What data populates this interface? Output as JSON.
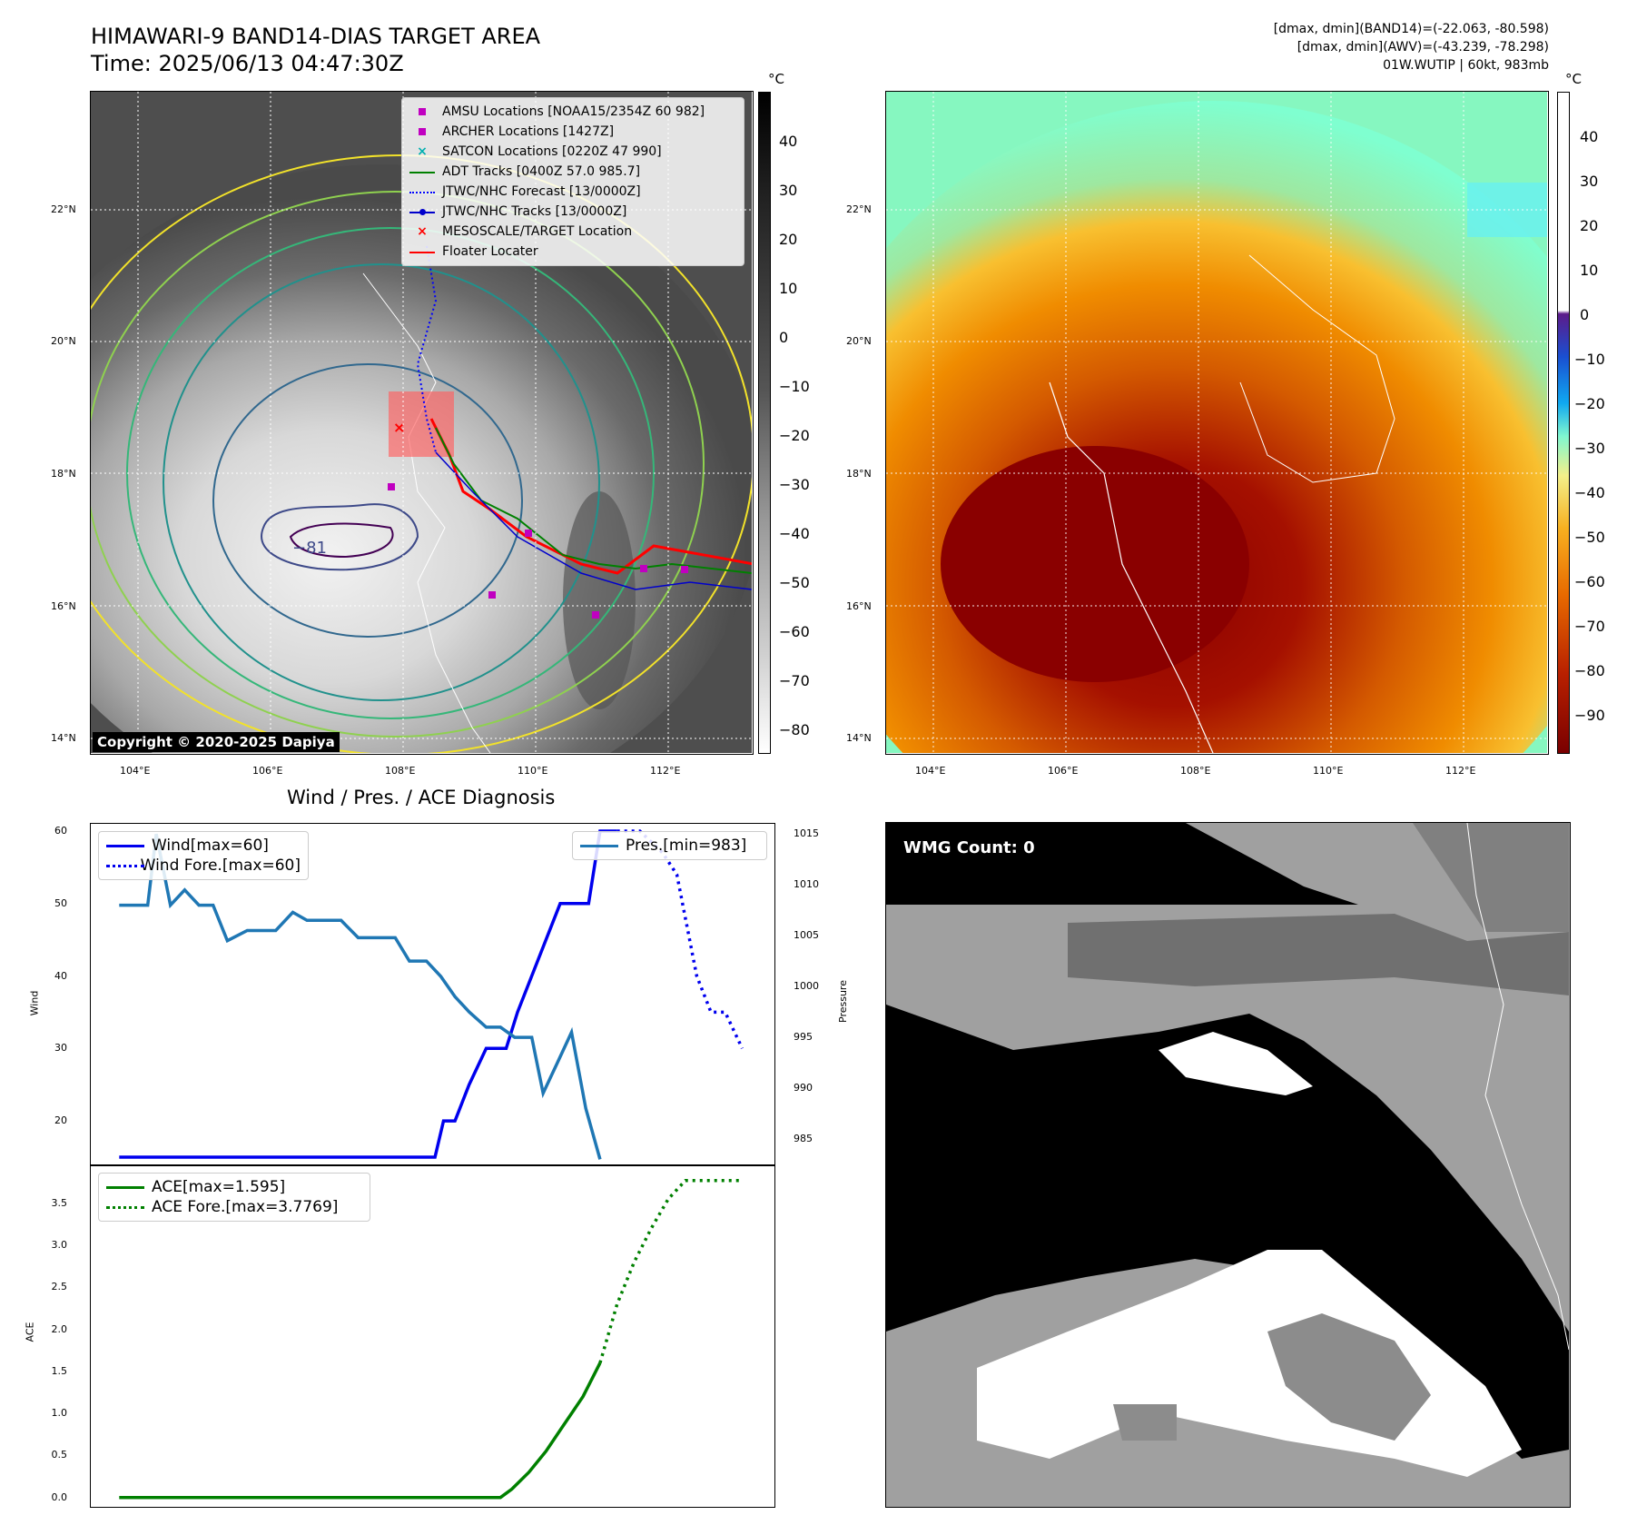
{
  "header": {
    "title_line1": "HIMAWARI-9 BAND14-DIAS TARGET AREA",
    "title_line2": "Time: 2025/06/13 04:47:30Z",
    "info_line1": "[dmax, dmin](BAND14)=(-22.063, -80.598)",
    "info_line2": "[dmax, dmin](AWV)=(-43.239, -78.298)",
    "info_line3": "01W.WUTIP | 60kt, 983mb"
  },
  "map_axes": {
    "lat_labels": [
      "22°N",
      "20°N",
      "18°N",
      "16°N",
      "14°N"
    ],
    "lon_labels": [
      "104°E",
      "106°E",
      "108°E",
      "110°E",
      "112°E"
    ]
  },
  "colorbar_left": {
    "unit": "°C",
    "ticks": [
      "40",
      "30",
      "20",
      "10",
      "0",
      "−10",
      "−20",
      "−30",
      "−40",
      "−50",
      "−60",
      "−70",
      "−80"
    ]
  },
  "colorbar_right": {
    "unit": "°C",
    "ticks": [
      "40",
      "30",
      "20",
      "10",
      "0",
      "−10",
      "−20",
      "−30",
      "−40",
      "−50",
      "−60",
      "−70",
      "−80",
      "−90"
    ]
  },
  "map_legend": [
    {
      "label": "AMSU Locations [NOAA15/2354Z 60 982]",
      "symbol": "square",
      "color": "#c000c0"
    },
    {
      "label": "ARCHER Locations [1427Z]",
      "symbol": "square",
      "color": "#c000c0"
    },
    {
      "label": "SATCON Locations [0220Z 47 990]",
      "symbol": "x",
      "color": "#00b0b0"
    },
    {
      "label": "ADT Tracks [0400Z 57.0 985.7]",
      "symbol": "line",
      "color": "#008000"
    },
    {
      "label": "JTWC/NHC Forecast [13/0000Z]",
      "symbol": "dotted",
      "color": "#0000ff"
    },
    {
      "label": "JTWC/NHC Tracks [13/0000Z]",
      "symbol": "line-dot",
      "color": "#0000cc"
    },
    {
      "label": "MESOSCALE/TARGET Location",
      "symbol": "x",
      "color": "#ff0000"
    },
    {
      "label": "Floater Locater",
      "symbol": "line",
      "color": "#ff0000"
    }
  ],
  "contour_label": "−81",
  "copyright": "Copyright © 2020-2025 Dapiya",
  "wmg": {
    "label": "WMG Count: 0"
  },
  "chart_data": [
    {
      "type": "line",
      "title": "Wind / Pres. / ACE Diagnosis",
      "ylabel": "Wind",
      "ylabel2": "Pressure",
      "ylim": [
        14,
        61
      ],
      "ylim2": [
        982.5,
        1016
      ],
      "yticks": [
        20,
        30,
        40,
        50,
        60
      ],
      "yticks2": [
        985,
        990,
        995,
        1000,
        1005,
        1010,
        1015
      ],
      "xlim": [
        0,
        24
      ],
      "series": [
        {
          "name": "Wind[max=60]",
          "axis": "left",
          "style": "solid",
          "color": "#0000ee",
          "x": [
            1,
            12.1,
            12.4,
            12.8,
            13.3,
            13.9,
            14.6,
            15,
            16.5,
            17.5,
            17.9,
            18.5
          ],
          "values": [
            15,
            15,
            20,
            20,
            25,
            30,
            30,
            35,
            50,
            50,
            60,
            60
          ]
        },
        {
          "name": "Wind Fore.[max=60]",
          "axis": "left",
          "style": "dotted",
          "color": "#0000ee",
          "x": [
            18.5,
            19.3,
            20.1,
            20.6,
            21.3,
            21.8,
            22.3,
            22.9
          ],
          "values": [
            60,
            60,
            57,
            54,
            40,
            35,
            35,
            30
          ]
        },
        {
          "name": "Pres.[min=983]",
          "axis": "right",
          "style": "solid",
          "color": "#1f77b4",
          "x": [
            1,
            2,
            2.3,
            2.8,
            3.3,
            3.8,
            4.3,
            4.8,
            5.5,
            6.5,
            7.1,
            7.6,
            8.2,
            8.8,
            9.4,
            10.1,
            10.7,
            11.2,
            11.8,
            12.3,
            12.8,
            13.3,
            13.9,
            14.4,
            14.9,
            15.5,
            15.9,
            16.4,
            16.9,
            17.4,
            17.9
          ],
          "values": [
            1008,
            1008,
            1015,
            1008,
            1009.5,
            1008,
            1008,
            1004.5,
            1005.5,
            1005.5,
            1007.3,
            1006.5,
            1006.5,
            1006.5,
            1004.8,
            1004.8,
            1004.8,
            1002.5,
            1002.5,
            1001,
            999,
            997.5,
            996,
            996,
            995,
            995,
            989.5,
            992.5,
            995.5,
            988,
            983
          ]
        }
      ]
    },
    {
      "type": "line",
      "ylabel": "ACE",
      "ylim": [
        -0.1,
        3.95
      ],
      "yticks": [
        0.0,
        0.5,
        1.0,
        1.5,
        2.0,
        2.5,
        3.0,
        3.5
      ],
      "xlim": [
        0,
        24
      ],
      "series": [
        {
          "name": "ACE[max=1.595]",
          "style": "solid",
          "color": "#008000",
          "x": [
            1,
            14.4,
            14.8,
            15.4,
            16,
            16.6,
            17.3,
            17.9
          ],
          "values": [
            0,
            0,
            0.1,
            0.3,
            0.55,
            0.85,
            1.2,
            1.6
          ]
        },
        {
          "name": "ACE Fore.[max=3.7769]",
          "style": "dotted",
          "color": "#008000",
          "x": [
            17.9,
            18.5,
            19.1,
            19.7,
            20.3,
            20.9,
            21.6,
            22.9
          ],
          "values": [
            1.6,
            2.3,
            2.8,
            3.2,
            3.55,
            3.77,
            3.77,
            3.77
          ]
        }
      ]
    }
  ]
}
